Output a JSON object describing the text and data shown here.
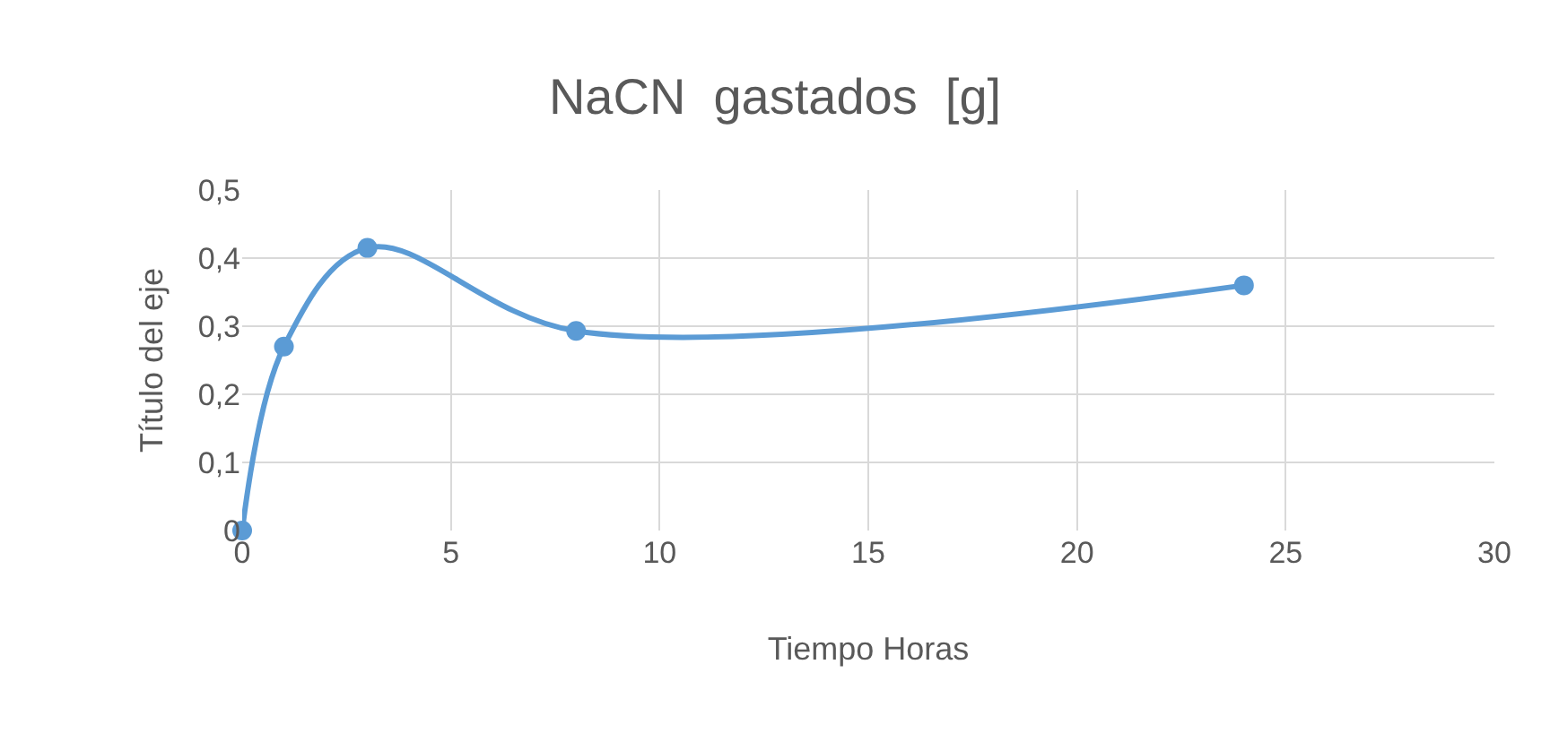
{
  "chart_data": {
    "type": "line",
    "title": "NaCN  gastados  [g]",
    "xlabel": "Tiempo Horas",
    "ylabel": "Título del eje",
    "x": [
      0,
      1,
      3,
      8,
      24
    ],
    "series": [
      {
        "color": "#5b9bd5",
        "values": [
          0,
          0.27,
          0.415,
          0.293,
          0.36
        ]
      }
    ],
    "xlim": [
      0,
      30
    ],
    "xticks": [
      0,
      5,
      10,
      15,
      20,
      25,
      30
    ],
    "ylim": [
      0,
      0.5
    ],
    "yticks": [
      0,
      {
        "value": 0.1,
        "label": "0,1"
      },
      {
        "value": 0.2,
        "label": "0,2"
      },
      {
        "value": 0.3,
        "label": "0,3"
      },
      {
        "value": 0.4,
        "label": "0,4"
      },
      {
        "value": 0.5,
        "label": "0,5"
      }
    ],
    "grid": true,
    "marker": "circle",
    "line_style": "solid"
  }
}
